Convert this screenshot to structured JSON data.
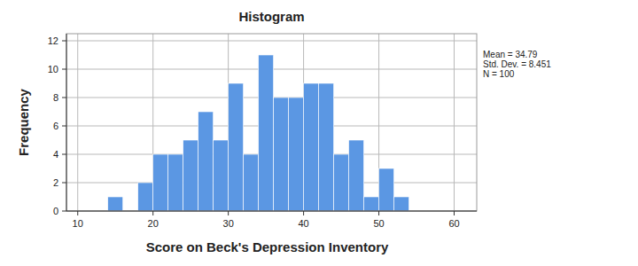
{
  "chart_data": {
    "type": "histogram",
    "title": "Histogram",
    "x_label": "Score on Beck's Depression Inventory",
    "y_label": "Frequency",
    "bins": [
      14,
      16,
      18,
      20,
      22,
      24,
      26,
      28,
      30,
      32,
      34,
      36,
      38,
      40,
      42,
      44,
      46,
      48,
      50,
      52,
      54
    ],
    "values": [
      1,
      0,
      2,
      4,
      4,
      5,
      7,
      5,
      9,
      4,
      11,
      8,
      8,
      9,
      9,
      4,
      5,
      1,
      3,
      1
    ],
    "color": "#5b97e3",
    "xlim": [
      8.5,
      63
    ],
    "xticks": [
      10,
      20,
      30,
      40,
      50,
      60
    ],
    "ylim": [
      0,
      12.5
    ],
    "yticks": [
      0,
      2,
      4,
      6,
      8,
      10,
      12
    ],
    "grid": true,
    "annotations": [
      "Mean = 34.79",
      "Std. Dev. = 8.451",
      "N = 100"
    ]
  }
}
